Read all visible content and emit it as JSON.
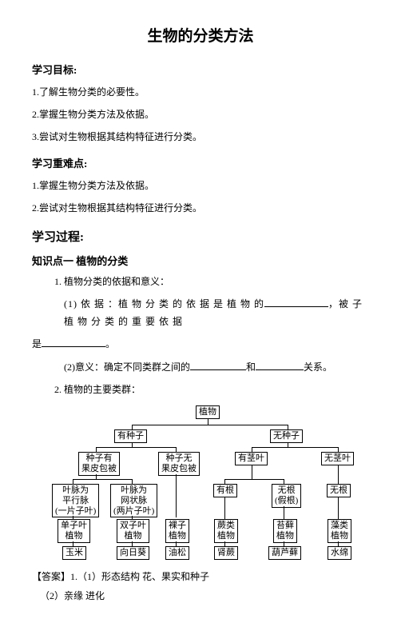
{
  "title": "生物的分类方法",
  "sec_goals_header": "学习目标:",
  "goals": {
    "g1": "1.了解生物分类的必要性。",
    "g2": "2.掌握生物分类方法及依据。",
    "g3": "3.尝试对生物根据其结构特征进行分类。"
  },
  "sec_difficult_header": "学习重难点:",
  "difficult": {
    "d1": "1.掌握生物分类方法及依据。",
    "d2": "2.尝试对生物根据其结构特征进行分类。"
  },
  "sec_process_header": "学习过程:",
  "kp1_header": "知识点一  植物的分类",
  "kp1": {
    "line1": "1. 植物分类的依据和意义：",
    "q1a": "(1) 依 据 ：植 物 分 类 的 依 据 是 植 物 的",
    "q1b": "，被 子 植 物 分 类 的 重 要 依 据",
    "q1c": "是",
    "q1d": "。",
    "q2a": "(2)意义：确定不同类群之间的",
    "q2b": "和",
    "q2c": "关系。",
    "line2": "2. 植物的主要类群："
  },
  "tree": {
    "root": "植物",
    "l1a": "有种子",
    "l1b": "无种子",
    "l2a": "种子有\n果皮包被",
    "l2b": "种子无\n果皮包被",
    "l2c": "有茎叶",
    "l2d": "无茎叶",
    "l3a": "叶脉为\n平行脉\n(一片子叶)",
    "l3b": "叶脉为\n网状脉\n(两片子叶)",
    "l3c": "有根",
    "l3d": "无根\n(假根)",
    "l3e": "无根",
    "l4a": "单子叶\n植物",
    "l4b": "双子叶\n植物",
    "l4c": "裸子\n植物",
    "l4d": "蕨类\n植物",
    "l4e": "苔藓\n植物",
    "l4f": "藻类\n植物",
    "l5a": "玉米",
    "l5b": "向日葵",
    "l5c": "油松",
    "l5d": "肾蕨",
    "l5e": "葫芦藓",
    "l5f": "水绵"
  },
  "answer_label": "【答案】",
  "answer1": "1.（1）形态结构   花、果实和种子",
  "answer2": "（2）亲缘   进化"
}
